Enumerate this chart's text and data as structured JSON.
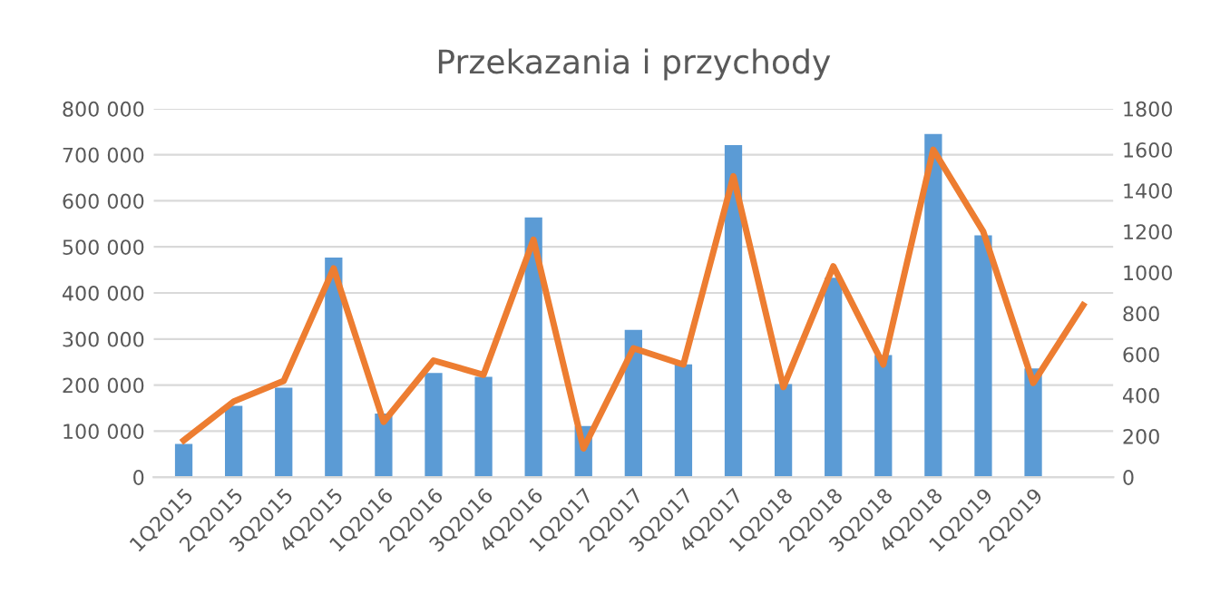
{
  "chart_data": {
    "type": "bar",
    "title": "Przekazania i przychody",
    "categories": [
      "1Q2015",
      "2Q2015",
      "3Q2015",
      "4Q2015",
      "1Q2016",
      "2Q2016",
      "3Q2016",
      "4Q2016",
      "1Q2017",
      "2Q2017",
      "3Q2017",
      "4Q2017",
      "1Q2018",
      "2Q2018",
      "3Q2018",
      "4Q2018",
      "1Q2019",
      "2Q2019",
      null
    ],
    "series": [
      {
        "color": "#5b9bd5",
        "values": [
          72000,
          155000,
          194000,
          477000,
          138000,
          226000,
          218000,
          564000,
          111000,
          320000,
          245000,
          721000,
          202000,
          433000,
          265000,
          745000,
          525000,
          236000,
          null
        ]
      },
      {
        "type": "line",
        "axis": "y2",
        "color": "#ed7d31",
        "values": [
          180,
          370,
          470,
          1020,
          270,
          570,
          500,
          1160,
          140,
          630,
          550,
          1470,
          440,
          1030,
          550,
          1600,
          1200,
          460,
          840
        ]
      }
    ],
    "ylim": [
      0,
      800000
    ],
    "yticks": [
      0,
      {
        "value": 100000,
        "label": "100 000"
      },
      {
        "value": 200000,
        "label": "200 000"
      },
      {
        "value": 300000,
        "label": "300 000"
      },
      {
        "value": 400000,
        "label": "400 000"
      },
      {
        "value": 500000,
        "label": "500 000"
      },
      {
        "value": 600000,
        "label": "600 000"
      },
      {
        "value": 700000,
        "label": "700 000"
      },
      {
        "value": 800000,
        "label": "800 000"
      }
    ],
    "y2lim": [
      0,
      1800
    ],
    "y2ticks": [
      0,
      200,
      400,
      600,
      800,
      1000,
      1200,
      1400,
      1600,
      1800
    ],
    "grid": "y",
    "marker": "none",
    "line_style": "solid"
  }
}
